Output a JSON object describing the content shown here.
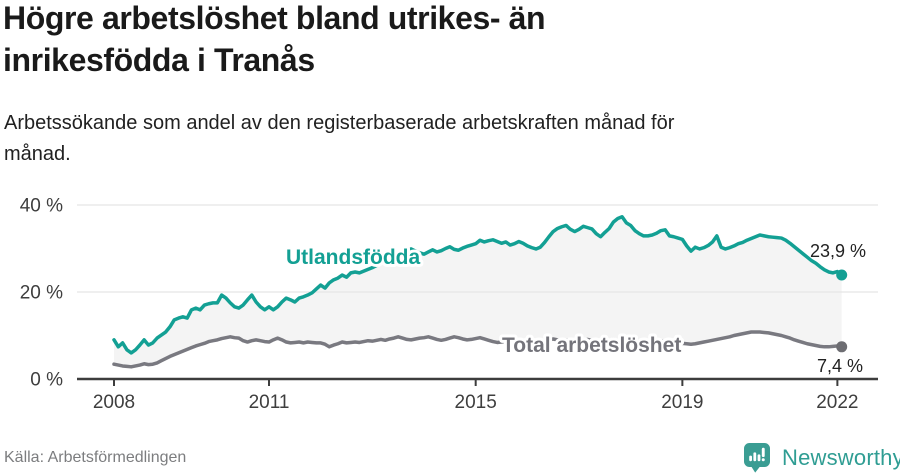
{
  "header": {
    "title_line1": "Högre arbetslöshet bland utrikes- än",
    "title_line2": "inrikesfödda i Tranås",
    "subtitle_line1": "Arbetssökande som andel av den registerbaserade arbetskraften månad för",
    "subtitle_line2": "månad."
  },
  "footer": {
    "source": "Källa: Arbetsförmedlingen",
    "brand_name": "Newsworthy"
  },
  "colors": {
    "accent_teal": "#13a094",
    "secondary_gray": "#797980",
    "band_fill": "#f4f4f4",
    "brand_teal": "#2f9d93"
  },
  "chart_data": {
    "type": "line",
    "title": "Högre arbetslöshet bland utrikes- än inrikesfödda i Tranås",
    "subtitle": "Arbetssökande som andel av den registerbaserade arbetskraften månad för månad.",
    "x_start": "2008-01",
    "x_interval": "month",
    "x_end": "2022-02",
    "xlim": [
      2008,
      2022.2
    ],
    "ylim": [
      0,
      42
    ],
    "grid": "horizontal",
    "legend_position": "inline-line-labels",
    "x_ticks": [
      {
        "value": 2008,
        "label": "2008"
      },
      {
        "value": 2011,
        "label": "2011"
      },
      {
        "value": 2015,
        "label": "2015"
      },
      {
        "value": 2019,
        "label": "2019"
      },
      {
        "value": 2022,
        "label": "2022"
      }
    ],
    "y_ticks": [
      {
        "value": 0,
        "label": "0 %"
      },
      {
        "value": 20,
        "label": "20 %"
      },
      {
        "value": 40,
        "label": "40 %"
      }
    ],
    "series": [
      {
        "name": "Utlandsfödda",
        "color": "#13a094",
        "end_label": "23,9 %",
        "last_value": 23.9,
        "values": [
          9.0,
          7.4,
          8.3,
          6.7,
          6.0,
          6.7,
          7.8,
          9.0,
          7.8,
          8.3,
          9.4,
          10.1,
          10.8,
          12.0,
          13.6,
          14.0,
          14.3,
          14.0,
          15.9,
          16.3,
          15.9,
          17.0,
          17.3,
          17.5,
          17.5,
          19.3,
          18.6,
          17.5,
          16.6,
          16.3,
          17.0,
          18.2,
          19.3,
          17.7,
          16.6,
          15.9,
          16.6,
          15.9,
          16.6,
          17.7,
          18.6,
          18.2,
          17.7,
          18.6,
          18.9,
          19.3,
          19.8,
          20.7,
          21.6,
          20.9,
          22.1,
          22.8,
          23.2,
          23.9,
          23.4,
          24.4,
          24.6,
          24.4,
          24.8,
          25.2,
          25.6,
          26.1,
          26.7,
          27.3,
          27.9,
          28.4,
          28.9,
          29.3,
          29.6,
          29.9,
          29.4,
          29.0,
          28.7,
          29.2,
          29.7,
          29.2,
          29.5,
          30.0,
          30.4,
          29.8,
          29.6,
          30.1,
          30.5,
          30.8,
          31.1,
          31.9,
          31.5,
          31.8,
          32.0,
          31.6,
          31.2,
          31.5,
          30.8,
          31.1,
          31.6,
          31.2,
          30.6,
          30.2,
          29.9,
          30.3,
          31.4,
          32.7,
          33.9,
          34.6,
          35.0,
          35.3,
          34.4,
          33.9,
          34.4,
          35.1,
          34.8,
          34.5,
          33.4,
          32.7,
          33.7,
          34.6,
          36.1,
          36.9,
          37.3,
          35.9,
          35.3,
          34.1,
          33.4,
          32.9,
          32.9,
          33.1,
          33.5,
          34.1,
          34.3,
          32.9,
          32.7,
          32.4,
          32.1,
          30.6,
          29.4,
          30.3,
          29.9,
          30.2,
          30.7,
          31.5,
          32.9,
          30.3,
          29.9,
          30.2,
          30.6,
          31.1,
          31.4,
          31.9,
          32.3,
          32.7,
          33.1,
          32.9,
          32.7,
          32.6,
          32.5,
          32.4,
          31.9,
          31.2,
          30.4,
          29.6,
          28.8,
          28.0,
          27.2,
          26.6,
          25.8,
          25.1,
          24.6,
          24.4,
          24.7,
          23.9
        ]
      },
      {
        "name": "Total arbetslöshet",
        "color": "#797980",
        "end_label": "7,4 %",
        "last_value": 7.4,
        "values": [
          3.4,
          3.2,
          3.0,
          2.9,
          2.8,
          3.0,
          3.2,
          3.5,
          3.3,
          3.4,
          3.7,
          4.2,
          4.7,
          5.2,
          5.6,
          6.0,
          6.4,
          6.8,
          7.2,
          7.6,
          7.9,
          8.2,
          8.6,
          8.8,
          9.0,
          9.3,
          9.5,
          9.7,
          9.5,
          9.4,
          8.8,
          8.5,
          8.8,
          9.0,
          8.8,
          8.6,
          8.5,
          9.0,
          9.4,
          9.0,
          8.5,
          8.3,
          8.4,
          8.5,
          8.3,
          8.5,
          8.4,
          8.3,
          8.3,
          8.0,
          7.4,
          7.8,
          8.1,
          8.5,
          8.3,
          8.4,
          8.5,
          8.4,
          8.6,
          8.8,
          8.7,
          8.9,
          9.1,
          8.9,
          9.2,
          9.4,
          9.7,
          9.4,
          9.1,
          9.0,
          9.2,
          9.4,
          9.5,
          9.7,
          9.4,
          9.1,
          8.9,
          9.1,
          9.4,
          9.7,
          9.5,
          9.2,
          9.0,
          9.1,
          9.3,
          9.5,
          9.2,
          8.9,
          8.6,
          8.4,
          8.5,
          8.7,
          8.9,
          8.7,
          8.5,
          8.6,
          8.8,
          9.0,
          8.8,
          8.6,
          8.8,
          9.0,
          9.2,
          9.0,
          8.8,
          8.9,
          9.1,
          8.9,
          8.7,
          8.9,
          9.1,
          8.9,
          8.7,
          8.5,
          8.7,
          8.9,
          9.1,
          8.9,
          8.7,
          8.8,
          9.0,
          8.8,
          8.6,
          8.4,
          8.6,
          8.8,
          9.0,
          8.8,
          8.6,
          8.4,
          8.3,
          8.4,
          8.2,
          8.1,
          8.0,
          8.1,
          8.3,
          8.5,
          8.7,
          8.9,
          9.1,
          9.3,
          9.5,
          9.7,
          10.0,
          10.2,
          10.4,
          10.6,
          10.8,
          10.8,
          10.8,
          10.7,
          10.6,
          10.4,
          10.2,
          10.0,
          9.7,
          9.4,
          9.0,
          8.7,
          8.4,
          8.1,
          7.9,
          7.7,
          7.5,
          7.4,
          7.4,
          7.5,
          7.6,
          7.4
        ]
      }
    ]
  }
}
